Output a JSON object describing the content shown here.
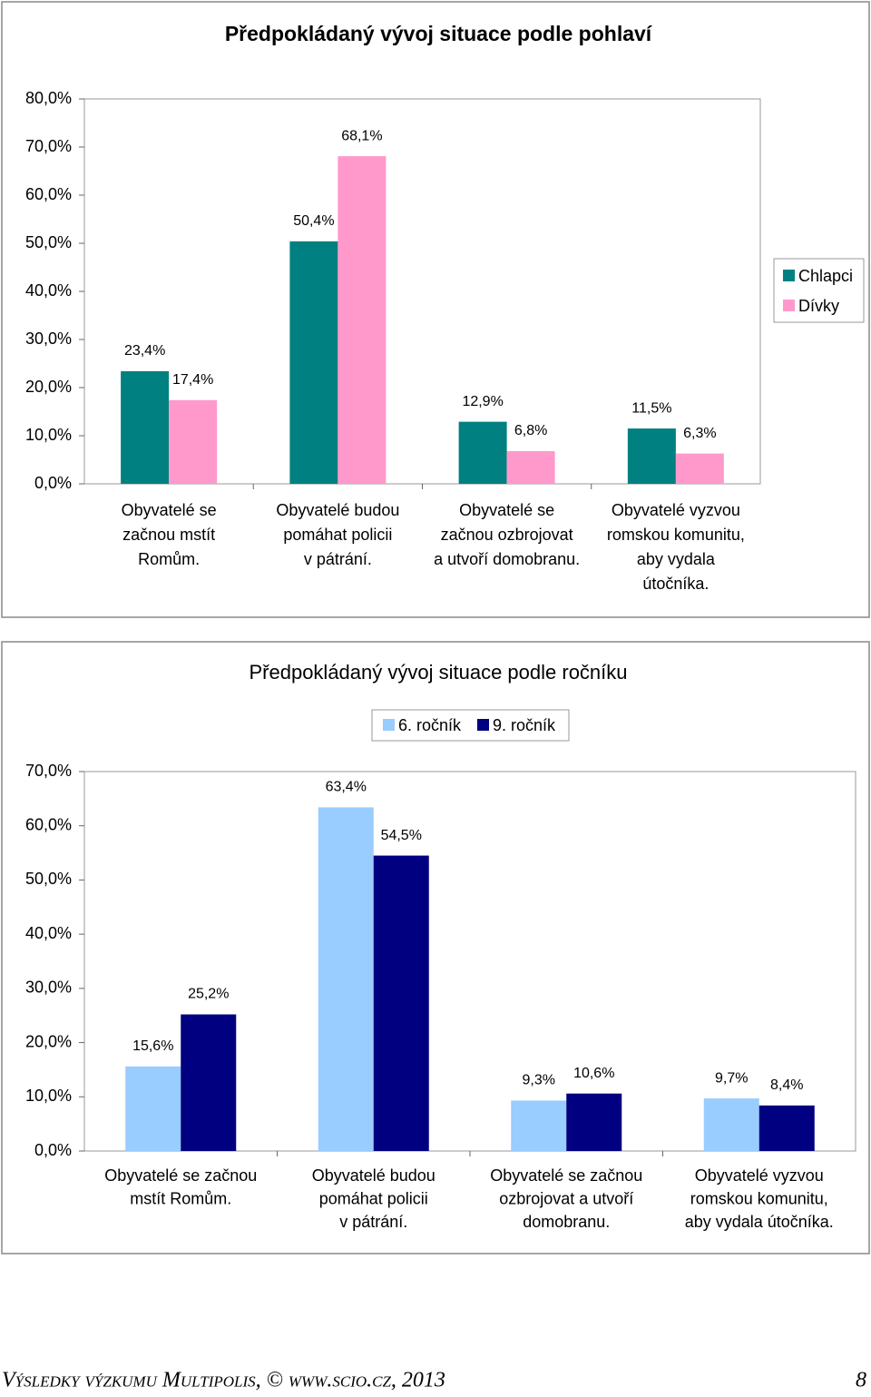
{
  "chart_data": [
    {
      "type": "bar",
      "title": "Předpokládaný vývoj situace podle pohlaví",
      "categories": [
        "Obyvatelé se\nzačnou mstít\nRomům.",
        "Obyvatelé budou\npomáhat policii\nv pátrání.",
        "Obyvatelé se\nzačnou ozbrojovat\na utvoří domobranu.",
        "Obyvatelé vyzvou\nromskou komunitu,\naby vydala\nútočníka."
      ],
      "series": [
        {
          "name": "Chlapci",
          "color": "#008080",
          "values": [
            23.4,
            50.4,
            12.9,
            11.5
          ],
          "value_labels": [
            "23,4%",
            "50,4%",
            "12,9%",
            "11,5%"
          ]
        },
        {
          "name": "Dívky",
          "color": "#ff99cc",
          "values": [
            17.4,
            68.1,
            6.8,
            6.3
          ],
          "value_labels": [
            "17,4%",
            "68,1%",
            "6,8%",
            "6,3%"
          ]
        }
      ],
      "ylim": [
        0,
        80
      ],
      "yticks": [
        {
          "value": 0,
          "label": "0,0%"
        },
        {
          "value": 10,
          "label": "10,0%"
        },
        {
          "value": 20,
          "label": "20,0%"
        },
        {
          "value": 30,
          "label": "30,0%"
        },
        {
          "value": 40,
          "label": "40,0%"
        },
        {
          "value": 50,
          "label": "50,0%"
        },
        {
          "value": 60,
          "label": "60,0%"
        },
        {
          "value": 70,
          "label": "70,0%"
        },
        {
          "value": 80,
          "label": "80,0%"
        }
      ],
      "legend": "right"
    },
    {
      "type": "bar",
      "title": "Předpokládaný vývoj situace podle ročníku",
      "categories": [
        "Obyvatelé se začnou\nmstít Romům.",
        "Obyvatelé budou\npomáhat policii\nv pátrání.",
        "Obyvatelé se začnou\nozbrojovat a utvoří\ndomobranu.",
        "Obyvatelé vyzvou\nromskou komunitu,\naby vydala útočníka."
      ],
      "series": [
        {
          "name": "6. ročník",
          "color": "#99ccff",
          "values": [
            15.6,
            63.4,
            9.3,
            9.7
          ],
          "value_labels": [
            "15,6%",
            "63,4%",
            "9,3%",
            "9,7%"
          ]
        },
        {
          "name": "9. ročník",
          "color": "#000080",
          "values": [
            25.2,
            54.5,
            10.6,
            8.4
          ],
          "value_labels": [
            "25,2%",
            "54,5%",
            "10,6%",
            "8,4%"
          ]
        }
      ],
      "ylim": [
        0,
        70
      ],
      "yticks": [
        {
          "value": 0,
          "label": "0,0%"
        },
        {
          "value": 10,
          "label": "10,0%"
        },
        {
          "value": 20,
          "label": "20,0%"
        },
        {
          "value": 30,
          "label": "30,0%"
        },
        {
          "value": 40,
          "label": "40,0%"
        },
        {
          "value": 50,
          "label": "50,0%"
        },
        {
          "value": 60,
          "label": "60,0%"
        },
        {
          "value": 70,
          "label": "70,0%"
        }
      ],
      "legend": "top"
    }
  ],
  "footer": {
    "text": "Výsledky výzkumu Multipolis, © www.scio.cz, 2013",
    "page": "8"
  }
}
